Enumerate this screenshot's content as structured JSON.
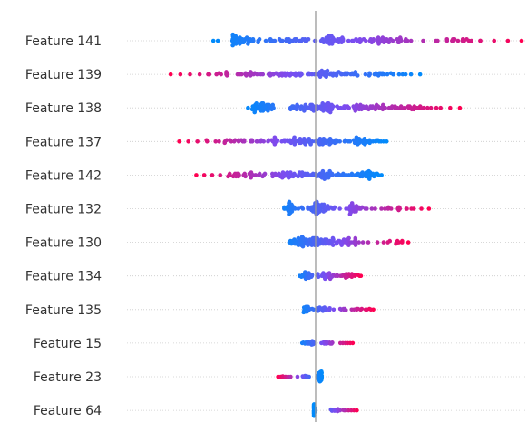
{
  "chart_data": {
    "type": "scatter",
    "subtype": "beeswarm",
    "xlim": [
      -1.0,
      1.0
    ],
    "zero_value": 0,
    "grid": false,
    "legend": "none",
    "colors": {
      "low": "#008bfb",
      "high": "#ff0051",
      "zero_line": "#999999",
      "row_guide": "#cccccc"
    },
    "features": [
      {
        "name": "Feature 141",
        "lo": -0.6,
        "hi": 1.0,
        "corr": 1,
        "dens": 0.9,
        "clusters": [
          {
            "c": -0.45,
            "w": 0.1,
            "n": 40
          },
          {
            "c": -0.15,
            "w": 0.12,
            "n": 25
          },
          {
            "c": 0.08,
            "w": 0.06,
            "n": 30
          },
          {
            "c": 0.3,
            "w": 0.2,
            "n": 45
          },
          {
            "c": 0.65,
            "w": 0.15,
            "n": 15
          }
        ]
      },
      {
        "name": "Feature 139",
        "lo": -0.85,
        "hi": 0.52,
        "corr": -1,
        "dens": 0.7,
        "clusters": [
          {
            "c": 0.3,
            "w": 0.14,
            "n": 30
          },
          {
            "c": 0.06,
            "w": 0.1,
            "n": 35
          },
          {
            "c": -0.15,
            "w": 0.14,
            "n": 35
          },
          {
            "c": -0.45,
            "w": 0.15,
            "n": 25
          }
        ]
      },
      {
        "name": "Feature 138",
        "lo": -0.42,
        "hi": 0.7,
        "corr": 1,
        "dens": 0.85,
        "clusters": [
          {
            "c": -0.3,
            "w": 0.08,
            "n": 40
          },
          {
            "c": -0.05,
            "w": 0.1,
            "n": 30
          },
          {
            "c": 0.05,
            "w": 0.06,
            "n": 30
          },
          {
            "c": 0.2,
            "w": 0.1,
            "n": 35
          },
          {
            "c": 0.42,
            "w": 0.12,
            "n": 30
          }
        ]
      },
      {
        "name": "Feature 137",
        "lo": -0.8,
        "hi": 0.35,
        "corr": -1,
        "dens": 0.8,
        "clusters": [
          {
            "c": 0.25,
            "w": 0.08,
            "n": 35
          },
          {
            "c": 0.05,
            "w": 0.1,
            "n": 40
          },
          {
            "c": -0.15,
            "w": 0.12,
            "n": 40
          },
          {
            "c": -0.4,
            "w": 0.15,
            "n": 25
          }
        ]
      },
      {
        "name": "Feature 142",
        "lo": -0.7,
        "hi": 0.32,
        "corr": -1,
        "dens": 0.75,
        "clusters": [
          {
            "c": 0.25,
            "w": 0.07,
            "n": 30
          },
          {
            "c": 0.05,
            "w": 0.1,
            "n": 40
          },
          {
            "c": -0.15,
            "w": 0.12,
            "n": 40
          },
          {
            "c": -0.4,
            "w": 0.12,
            "n": 25
          }
        ]
      },
      {
        "name": "Feature 132",
        "lo": -0.25,
        "hi": 0.55,
        "corr": 1,
        "dens": 0.8,
        "clusters": [
          {
            "c": -0.15,
            "w": 0.06,
            "n": 25
          },
          {
            "c": 0.02,
            "w": 0.07,
            "n": 50
          },
          {
            "c": 0.18,
            "w": 0.1,
            "n": 30
          },
          {
            "c": 0.4,
            "w": 0.1,
            "n": 10
          }
        ]
      },
      {
        "name": "Feature 130",
        "lo": -0.2,
        "hi": 0.45,
        "corr": 1,
        "dens": 0.8,
        "clusters": [
          {
            "c": -0.1,
            "w": 0.06,
            "n": 30
          },
          {
            "c": 0.02,
            "w": 0.06,
            "n": 45
          },
          {
            "c": 0.15,
            "w": 0.09,
            "n": 30
          },
          {
            "c": 0.38,
            "w": 0.06,
            "n": 5
          }
        ]
      },
      {
        "name": "Feature 134",
        "lo": -0.12,
        "hi": 0.22,
        "corr": 1,
        "dens": 0.55,
        "clusters": [
          {
            "c": -0.05,
            "w": 0.04,
            "n": 25
          },
          {
            "c": 0.05,
            "w": 0.05,
            "n": 30
          },
          {
            "c": 0.15,
            "w": 0.05,
            "n": 15
          }
        ]
      },
      {
        "name": "Feature 135",
        "lo": -0.1,
        "hi": 0.28,
        "corr": 1,
        "dens": 0.4,
        "clusters": [
          {
            "c": -0.05,
            "w": 0.03,
            "n": 20
          },
          {
            "c": 0.04,
            "w": 0.04,
            "n": 20
          },
          {
            "c": 0.15,
            "w": 0.08,
            "n": 15
          }
        ]
      },
      {
        "name": "Feature 15",
        "lo": -0.1,
        "hi": 0.18,
        "corr": 1,
        "dens": 0.3,
        "clusters": [
          {
            "c": -0.04,
            "w": 0.03,
            "n": 20
          },
          {
            "c": 0.06,
            "w": 0.04,
            "n": 15
          }
        ]
      },
      {
        "name": "Feature 23",
        "lo": -0.22,
        "hi": 0.03,
        "corr": -1,
        "dens": 0.25,
        "clusters": [
          {
            "c": 0.02,
            "w": 0.01,
            "n": 40
          },
          {
            "c": -0.07,
            "w": 0.03,
            "n": 10
          },
          {
            "c": -0.2,
            "w": 0.01,
            "n": 2
          }
        ]
      },
      {
        "name": "Feature 64",
        "lo": -0.01,
        "hi": 0.2,
        "corr": 1,
        "dens": 0.25,
        "clusters": [
          {
            "c": -0.01,
            "w": 0.005,
            "n": 40
          },
          {
            "c": 0.1,
            "w": 0.04,
            "n": 15
          }
        ]
      }
    ]
  }
}
